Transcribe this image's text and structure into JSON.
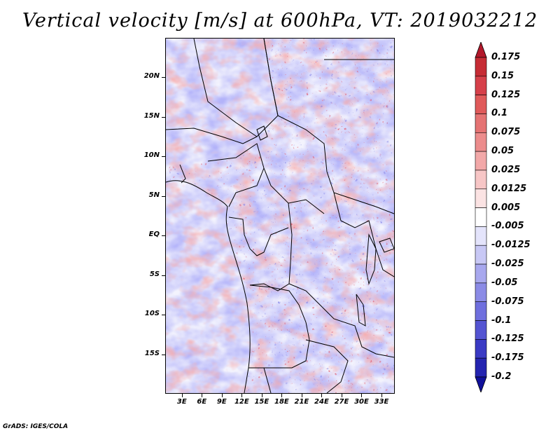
{
  "title": "Vertical velocity [m/s] at 600hPa, VT: 2019032212",
  "credit": "GrADS: IGES/COLA",
  "map": {
    "lat_labels": [
      {
        "text": "20N",
        "lat": 20
      },
      {
        "text": "15N",
        "lat": 15
      },
      {
        "text": "10N",
        "lat": 10
      },
      {
        "text": "5N",
        "lat": 5
      },
      {
        "text": "EQ",
        "lat": 0
      },
      {
        "text": "5S",
        "lat": -5
      },
      {
        "text": "10S",
        "lat": -10
      },
      {
        "text": "15S",
        "lat": -15
      }
    ],
    "lon_labels": [
      {
        "text": "3E",
        "lon": 3
      },
      {
        "text": "6E",
        "lon": 6
      },
      {
        "text": "9E",
        "lon": 9
      },
      {
        "text": "12E",
        "lon": 12
      },
      {
        "text": "15E",
        "lon": 15
      },
      {
        "text": "18E",
        "lon": 18
      },
      {
        "text": "21E",
        "lon": 21
      },
      {
        "text": "24E",
        "lon": 24
      },
      {
        "text": "27E",
        "lon": 27
      },
      {
        "text": "30E",
        "lon": 30
      },
      {
        "text": "33E",
        "lon": 33
      }
    ],
    "extent": {
      "lon_min": 0.5,
      "lon_max": 35,
      "lat_min": -20,
      "lat_max": 25
    }
  },
  "colorbar": {
    "levels": [
      "0.175",
      "0.15",
      "0.125",
      "0.1",
      "0.075",
      "0.05",
      "0.025",
      "0.0125",
      "0.005",
      "-0.005",
      "-0.0125",
      "-0.025",
      "-0.05",
      "-0.075",
      "-0.1",
      "-0.125",
      "-0.175",
      "-0.2"
    ],
    "colors": [
      "#b2182b",
      "#c62c35",
      "#d6404a",
      "#e05a5a",
      "#e57373",
      "#ec8c8c",
      "#f2a8a8",
      "#f7c6c6",
      "#fbe3e3",
      "#ffffff",
      "#e4e4fb",
      "#c8c8f5",
      "#a8a8ee",
      "#8b8be6",
      "#6f6fde",
      "#5454d2",
      "#3a3ac4",
      "#2424b0",
      "#10109a"
    ]
  }
}
